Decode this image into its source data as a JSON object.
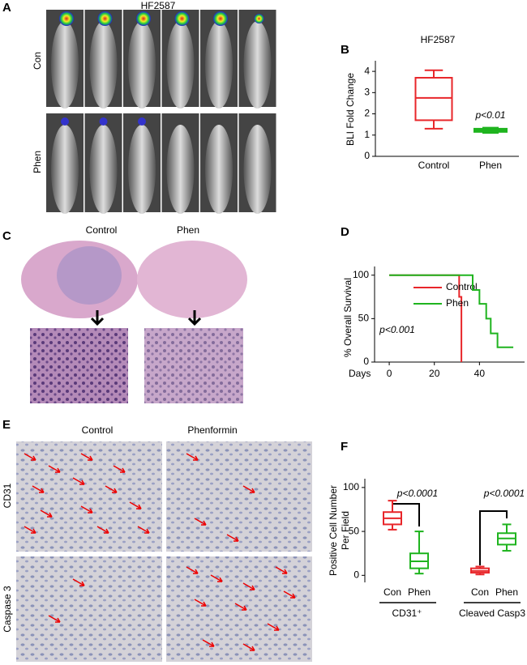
{
  "figure": {
    "A": {
      "label": "A",
      "title": "HF2587",
      "rows": [
        "Con",
        "Phen"
      ]
    },
    "C": {
      "label": "C",
      "columns": [
        "Control",
        "Phen"
      ]
    },
    "E": {
      "label": "E",
      "columns": [
        "Control",
        "Phenformin"
      ],
      "rows": [
        "CD31",
        "Caspase 3"
      ]
    }
  },
  "chart_data": [
    {
      "type": "box",
      "label": "B",
      "title": "HF2587",
      "ylabel": "BLI Fold Change",
      "categories": [
        "Control",
        "Phen"
      ],
      "boxes": [
        [
          1.3,
          1.7,
          2.75,
          3.7,
          4.05
        ],
        [
          1.1,
          1.15,
          1.25,
          1.3,
          1.35
        ]
      ],
      "colors": [
        "#e8262a",
        "#1fb41f"
      ],
      "ylim": [
        0,
        4.5
      ],
      "yticks": [
        0,
        1,
        2,
        3,
        4
      ],
      "annotations": [
        "p<0.01"
      ]
    },
    {
      "type": "step",
      "label": "D",
      "ylabel": "% Overall  Survival",
      "xlabel": "Days",
      "series": [
        {
          "name": "Control",
          "color": "#e8262a",
          "x": [
            0,
            31,
            32
          ],
          "values": [
            100,
            75,
            0
          ]
        },
        {
          "name": "Phen",
          "color": "#1fb41f",
          "x": [
            0,
            37,
            40,
            43,
            45,
            48,
            55
          ],
          "values": [
            100,
            83,
            67,
            50,
            33,
            17,
            17
          ]
        }
      ],
      "xlim": [
        -6.5,
        60
      ],
      "ylim": [
        0,
        110
      ],
      "xticks": [
        0,
        20,
        40
      ],
      "yticks": [
        0,
        50,
        100
      ],
      "annotations": [
        "p<0.001"
      ]
    },
    {
      "type": "box",
      "label": "F",
      "ylabel": [
        "Positive Cell Number",
        "Per Field"
      ],
      "categories": [
        "Con",
        "Phen",
        "Con",
        "Phen"
      ],
      "groups": [
        "CD31⁺",
        "Cleaved  Casp3"
      ],
      "boxes": [
        [
          52,
          58,
          65,
          72,
          85
        ],
        [
          2,
          8,
          16,
          25,
          50
        ],
        [
          1,
          3,
          5,
          8,
          10
        ],
        [
          28,
          35,
          42,
          48,
          58
        ]
      ],
      "colors": [
        "#e8262a",
        "#1fb41f",
        "#e8262a",
        "#1fb41f"
      ],
      "ylim": [
        -8,
        110
      ],
      "yticks": [
        0,
        50,
        100
      ],
      "annotations": [
        "p<0.0001",
        "p<0.0001"
      ]
    }
  ]
}
